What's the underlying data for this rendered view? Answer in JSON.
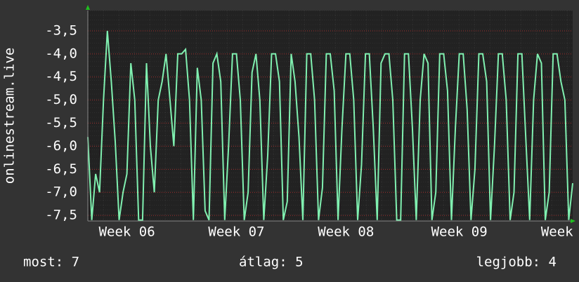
{
  "chart_data": {
    "type": "line",
    "y_label": "onlinestream.live",
    "categories": [
      null,
      null,
      null,
      null,
      null,
      null,
      null,
      null,
      null,
      null,
      "Week 06",
      null,
      null,
      null,
      null,
      null,
      null,
      null,
      null,
      null,
      null,
      null,
      null,
      null,
      null,
      null,
      null,
      null,
      null,
      null,
      null,
      null,
      null,
      null,
      null,
      null,
      null,
      null,
      "Week 07",
      null,
      null,
      null,
      null,
      null,
      null,
      null,
      null,
      null,
      null,
      null,
      null,
      null,
      null,
      null,
      null,
      null,
      null,
      null,
      null,
      null,
      null,
      null,
      null,
      null,
      null,
      null,
      "Week 08",
      null,
      null,
      null,
      null,
      null,
      null,
      null,
      null,
      null,
      null,
      null,
      null,
      null,
      null,
      null,
      null,
      null,
      null,
      null,
      null,
      null,
      null,
      null,
      null,
      null,
      null,
      null,
      null,
      "Week 09",
      null,
      null,
      null,
      null,
      null,
      null,
      null,
      null,
      null,
      null,
      null,
      null,
      null,
      null,
      null,
      null,
      null,
      null,
      null,
      null,
      null,
      null,
      null,
      null,
      "Week",
      null,
      null,
      null,
      null
    ],
    "series": [
      {
        "name": "onlinestream.live",
        "color": "#80f0b0",
        "values": [
          -5.8,
          -7.6,
          -6.6,
          -7.0,
          -5.0,
          -3.5,
          -4.6,
          -5.9,
          -7.6,
          -7.0,
          -6.6,
          -4.2,
          -5.0,
          -7.6,
          -7.6,
          -4.2,
          -6.0,
          -7.0,
          -5.0,
          -4.6,
          -4.0,
          -5.0,
          -6.0,
          -4.0,
          -4.0,
          -3.9,
          -5.0,
          -7.6,
          -4.3,
          -5.0,
          -7.4,
          -7.6,
          -4.2,
          -4.0,
          -4.6,
          -7.6,
          -6.0,
          -4.0,
          -4.0,
          -5.0,
          -7.6,
          -7.0,
          -4.4,
          -4.0,
          -5.0,
          -7.6,
          -6.2,
          -4.0,
          -4.0,
          -4.6,
          -7.6,
          -7.2,
          -4.0,
          -4.6,
          -5.8,
          -7.6,
          -4.0,
          -4.0,
          -5.0,
          -7.6,
          -6.9,
          -4.0,
          -4.0,
          -4.8,
          -7.6,
          -5.6,
          -4.0,
          -4.0,
          -5.0,
          -7.6,
          -6.4,
          -4.0,
          -4.0,
          -5.6,
          -7.6,
          -4.2,
          -4.0,
          -4.0,
          -5.0,
          -7.6,
          -7.6,
          -4.0,
          -4.0,
          -5.6,
          -7.6,
          -5.0,
          -4.0,
          -4.2,
          -7.6,
          -7.0,
          -4.0,
          -4.0,
          -4.8,
          -7.6,
          -5.6,
          -4.0,
          -4.0,
          -5.2,
          -7.6,
          -6.5,
          -4.0,
          -4.0,
          -4.6,
          -7.6,
          -6.0,
          -4.0,
          -4.0,
          -5.0,
          -7.6,
          -7.0,
          -4.0,
          -4.0,
          -5.8,
          -7.6,
          -5.0,
          -4.0,
          -4.2,
          -7.6,
          -7.0,
          -4.0,
          -4.0,
          -4.6,
          -5.0,
          -7.6,
          -6.8
        ]
      }
    ],
    "ylim": [
      -7.62,
      -3.06
    ],
    "yticks": [
      {
        "value": -3.5,
        "label": "-3,5"
      },
      {
        "value": -4.0,
        "label": "-4,0"
      },
      {
        "value": -4.5,
        "label": "-4,5"
      },
      {
        "value": -5.0,
        "label": "-5,0"
      },
      {
        "value": -5.5,
        "label": "-5,5"
      },
      {
        "value": -6.0,
        "label": "-6,0"
      },
      {
        "value": -6.5,
        "label": "-6,5"
      },
      {
        "value": -7.0,
        "label": "-7,0"
      },
      {
        "value": -7.5,
        "label": "-7,5"
      }
    ],
    "grid": true,
    "footer": [
      "most: 7",
      "átlag: 5",
      "legjobb: 4"
    ]
  }
}
